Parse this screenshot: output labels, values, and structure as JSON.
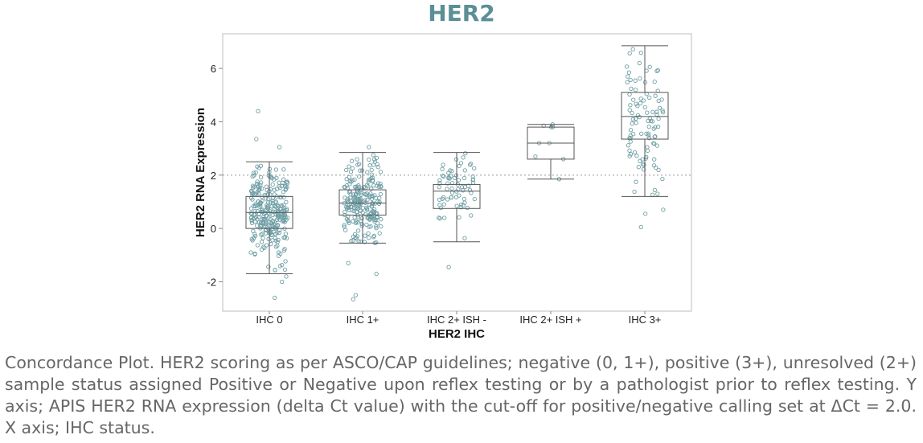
{
  "chart_data": {
    "type": "box",
    "title": "HER2",
    "xlabel": "HER2 IHC",
    "ylabel": "HER2 RNA Expression",
    "ylim": [
      -3.1,
      7.3
    ],
    "yticks": [
      -2,
      0,
      2,
      4,
      6
    ],
    "categories": [
      "IHC 0",
      "IHC 1+",
      "IHC 2+ ISH -",
      "IHC 2+ ISH +",
      "IHC 3+"
    ],
    "cutoff": 2.0,
    "grid": false,
    "colors": {
      "title": "#5b8f97",
      "points": "#6e9ea5",
      "box": "#555555",
      "cutoff_line": "#999999"
    },
    "boxes": [
      {
        "category": "IHC 0",
        "min": -1.7,
        "q1": 0.0,
        "median": 0.6,
        "q3": 1.2,
        "max": 2.5,
        "n": 280
      },
      {
        "category": "IHC 1+",
        "min": -0.55,
        "q1": 0.5,
        "median": 0.95,
        "q3": 1.45,
        "max": 2.85,
        "n": 230
      },
      {
        "category": "IHC 2+ ISH -",
        "min": -0.5,
        "q1": 0.75,
        "median": 1.4,
        "q3": 1.65,
        "max": 2.85,
        "n": 70
      },
      {
        "category": "IHC 2+ ISH +",
        "min": 1.85,
        "q1": 2.6,
        "median": 3.2,
        "q3": 3.8,
        "max": 3.9,
        "n": 9
      },
      {
        "category": "IHC 3+",
        "min": 1.2,
        "q1": 3.35,
        "median": 4.2,
        "q3": 5.1,
        "max": 6.85,
        "n": 100
      }
    ],
    "outliers": [
      {
        "category": "IHC 0",
        "values": [
          4.4,
          3.35,
          3.05,
          -1.8,
          -2.0,
          -2.6
        ]
      },
      {
        "category": "IHC 1+",
        "values": [
          3.05,
          -1.3,
          -1.7,
          -2.5,
          -2.65
        ]
      },
      {
        "category": "IHC 2+ ISH -",
        "values": [
          -1.45
        ]
      },
      {
        "category": "IHC 3+",
        "values": [
          0.05,
          0.55,
          0.7
        ]
      }
    ]
  },
  "caption": "Concordance Plot. HER2 scoring as per ASCO/CAP guidelines; negative (0, 1+), positive (3+), unresolved (2+) sample status assigned Positive or Negative upon reflex testing or by a pathologist prior to reflex testing. Y axis; APIS HER2 RNA expression (delta Ct value) with the cut-off for positive/negative calling set at ΔCt = 2.0. X axis; IHC status."
}
